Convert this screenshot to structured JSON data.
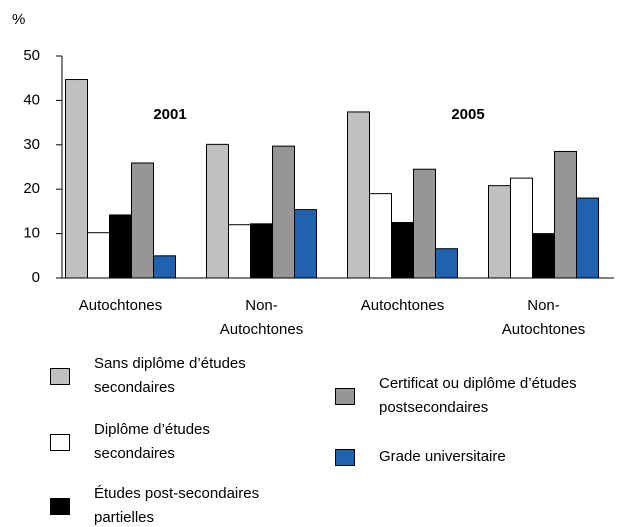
{
  "chart_data": {
    "type": "bar",
    "y_label": "%",
    "annotations": [
      "2001",
      "2005"
    ],
    "categories": [
      "Autochtones",
      "Non-Autochtones",
      "Autochtones",
      "Non-Autochtones"
    ],
    "series": [
      {
        "name": "Sans diplôme d’études secondaires",
        "color": "#c0c0c0",
        "values": [
          44.7,
          30.1,
          37.4,
          20.8
        ]
      },
      {
        "name": "Diplôme d’études secondaires",
        "color": "#ffffff",
        "values": [
          10.2,
          12.0,
          19.0,
          22.5
        ]
      },
      {
        "name": "Études post-secondaires partielles",
        "color": "#000000",
        "values": [
          14.2,
          12.2,
          12.5,
          10.0
        ]
      },
      {
        "name": "Certificat ou diplôme d’études postsecondaires",
        "color": "#969696",
        "values": [
          25.9,
          29.7,
          24.5,
          28.5
        ]
      },
      {
        "name": "Grade universitaire",
        "color": "#1e62b0",
        "values": [
          5.0,
          15.4,
          6.6,
          18.0
        ]
      }
    ],
    "ylim": [
      0,
      50
    ],
    "yticks": [
      0,
      10,
      20,
      30,
      40,
      50
    ],
    "grid": false
  }
}
